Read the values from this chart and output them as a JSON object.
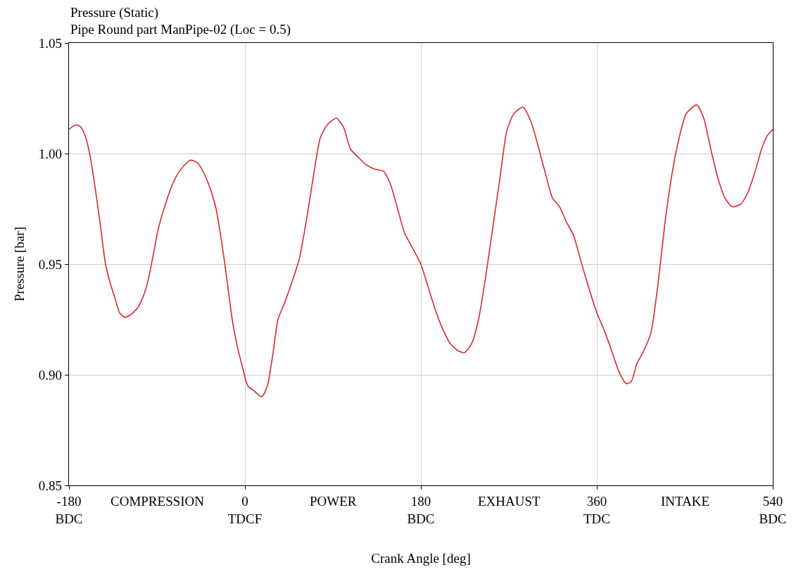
{
  "chart_data": {
    "type": "line",
    "title": "Pressure (Static)",
    "subtitle": "Pipe Round part ManPipe-02 (Loc = 0.5)",
    "xlabel": "Crank Angle [deg]",
    "ylabel": "Pressure [bar]",
    "x": [
      -180,
      -172.8,
      -167.8,
      -162.7,
      -158.4,
      -153.4,
      -148.3,
      -142.6,
      -137.5,
      -133.2,
      -128.2,
      -123.1,
      -117.4,
      -110.2,
      -104.4,
      -99.4,
      -94.3,
      -88.6,
      -81.4,
      -74.2,
      -67.0,
      -56.2,
      -49.0,
      -41.8,
      -34.6,
      -29.5,
      -23.8,
      -18.7,
      -13.0,
      -7.9,
      -2.2,
      2.9,
      8.6,
      17.3,
      23.0,
      28.8,
      33.8,
      41.0,
      48.2,
      55.4,
      62.6,
      69.8,
      77.0,
      84.2,
      93.6,
      100.8,
      108.0,
      116.6,
      123.8,
      132.5,
      141.8,
      149.0,
      156.2,
      163.4,
      170.6,
      180,
      188.6,
      195.8,
      203.0,
      210.2,
      217.4,
      224.6,
      231.8,
      239.0,
      246.2,
      253.4,
      260.6,
      267.8,
      275.0,
      284.4,
      293.0,
      300.2,
      307.4,
      314.6,
      321.8,
      329.0,
      336.2,
      343.4,
      350.6,
      360,
      368.6,
      375.8,
      383.0,
      390.2,
      395.3,
      401.0,
      408.2,
      415.4,
      422.6,
      429.8,
      437.0,
      444.2,
      451.4,
      462.2,
      469.4,
      476.6,
      483.8,
      491.0,
      498.2,
      506.9,
      514.1,
      521.3,
      528.5,
      534.2,
      540
    ],
    "series": [
      {
        "color": "#d42a32",
        "values": [
          1.011,
          1.013,
          1.012,
          1.007,
          0.999,
          0.985,
          0.969,
          0.95,
          0.941,
          0.935,
          0.928,
          0.926,
          0.927,
          0.93,
          0.935,
          0.942,
          0.953,
          0.966,
          0.977,
          0.986,
          0.992,
          0.997,
          0.996,
          0.991,
          0.983,
          0.975,
          0.96,
          0.944,
          0.925,
          0.913,
          0.903,
          0.895,
          0.893,
          0.89,
          0.895,
          0.91,
          0.925,
          0.933,
          0.942,
          0.952,
          0.969,
          0.989,
          1.007,
          1.013,
          1.016,
          1.012,
          1.002,
          0.998,
          0.995,
          0.993,
          0.992,
          0.986,
          0.975,
          0.964,
          0.958,
          0.95,
          0.938,
          0.928,
          0.92,
          0.914,
          0.911,
          0.91,
          0.914,
          0.925,
          0.944,
          0.966,
          0.988,
          1.01,
          1.018,
          1.021,
          1.014,
          1.003,
          0.991,
          0.98,
          0.976,
          0.969,
          0.963,
          0.952,
          0.941,
          0.928,
          0.919,
          0.91,
          0.901,
          0.896,
          0.897,
          0.905,
          0.911,
          0.919,
          0.941,
          0.969,
          0.991,
          1.007,
          1.018,
          1.022,
          1.016,
          1.002,
          0.989,
          0.98,
          0.976,
          0.977,
          0.982,
          0.991,
          1.002,
          1.008,
          1.011
        ]
      }
    ],
    "xlim": [
      -180,
      540
    ],
    "xticks": [
      {
        "value": -180,
        "label": "-180\nBDC"
      },
      {
        "value": 0,
        "label": "0\nTDCF"
      },
      {
        "value": 180,
        "label": "180\nBDC"
      },
      {
        "value": 360,
        "label": "360\nTDC"
      },
      {
        "value": 540,
        "label": "540\nBDC"
      }
    ],
    "ylim": [
      0.85,
      1.05
    ],
    "yticks": [
      0.85,
      {
        "value": 0.9,
        "label": "0.90"
      },
      0.95,
      {
        "value": 1.0,
        "label": "1.00"
      },
      1.05
    ],
    "annotations": [
      "COMPRESSION",
      "POWER",
      "EXHAUST",
      "INTAKE"
    ],
    "grid": true,
    "line_style": "solid",
    "marker": "none"
  }
}
